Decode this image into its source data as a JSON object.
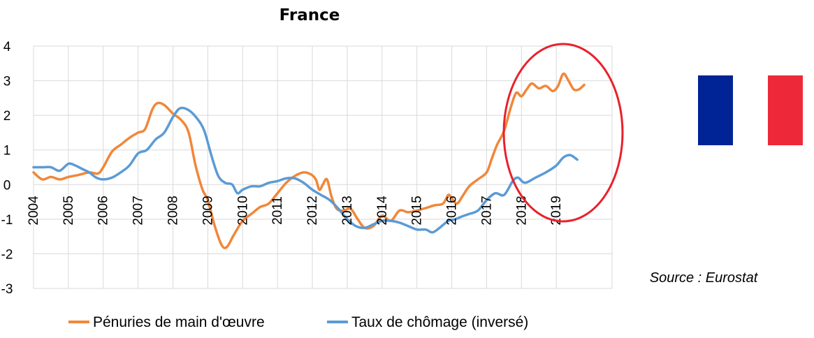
{
  "chart_data": {
    "type": "line",
    "title": "France",
    "xlabel": "",
    "ylabel": "",
    "ylim": [
      -3,
      4
    ],
    "y_ticks": [
      4,
      3,
      2,
      1,
      0,
      -1,
      -2,
      -3
    ],
    "x_ticks": [
      "2004",
      "2005",
      "2006",
      "2007",
      "2008",
      "2009",
      "2010",
      "2011",
      "2012",
      "2013",
      "2014",
      "2015",
      "2016",
      "2017",
      "2018",
      "2019"
    ],
    "xlim": [
      2004.0,
      2020.6
    ],
    "grid": "vertical and horizontal",
    "legend_position": "bottom",
    "source": "Source : Eurostat",
    "series": [
      {
        "name": "Pénuries de main d'œuvre",
        "color": "#F0873A",
        "points": [
          [
            2004.0,
            0.35
          ],
          [
            2004.25,
            0.15
          ],
          [
            2004.5,
            0.22
          ],
          [
            2004.75,
            0.15
          ],
          [
            2005.0,
            0.22
          ],
          [
            2005.3,
            0.28
          ],
          [
            2005.6,
            0.35
          ],
          [
            2005.85,
            0.32
          ],
          [
            2006.0,
            0.5
          ],
          [
            2006.25,
            0.95
          ],
          [
            2006.5,
            1.15
          ],
          [
            2006.75,
            1.35
          ],
          [
            2007.0,
            1.5
          ],
          [
            2007.2,
            1.6
          ],
          [
            2007.4,
            2.15
          ],
          [
            2007.55,
            2.35
          ],
          [
            2007.75,
            2.3
          ],
          [
            2008.0,
            2.05
          ],
          [
            2008.25,
            1.85
          ],
          [
            2008.45,
            1.5
          ],
          [
            2008.65,
            0.55
          ],
          [
            2008.85,
            -0.15
          ],
          [
            2009.0,
            -0.45
          ],
          [
            2009.2,
            -1.2
          ],
          [
            2009.4,
            -1.75
          ],
          [
            2009.55,
            -1.8
          ],
          [
            2009.75,
            -1.45
          ],
          [
            2010.0,
            -1.05
          ],
          [
            2010.25,
            -0.85
          ],
          [
            2010.5,
            -0.65
          ],
          [
            2010.75,
            -0.55
          ],
          [
            2011.0,
            -0.25
          ],
          [
            2011.25,
            0.05
          ],
          [
            2011.5,
            0.25
          ],
          [
            2011.75,
            0.35
          ],
          [
            2011.95,
            0.3
          ],
          [
            2012.1,
            0.15
          ],
          [
            2012.2,
            -0.15
          ],
          [
            2012.3,
            0.0
          ],
          [
            2012.42,
            0.15
          ],
          [
            2012.55,
            -0.35
          ],
          [
            2012.7,
            -0.7
          ],
          [
            2012.9,
            -0.75
          ],
          [
            2013.1,
            -0.7
          ],
          [
            2013.3,
            -1.0
          ],
          [
            2013.5,
            -1.25
          ],
          [
            2013.75,
            -1.2
          ],
          [
            2014.0,
            -0.9
          ],
          [
            2014.25,
            -1.05
          ],
          [
            2014.5,
            -0.75
          ],
          [
            2014.75,
            -0.8
          ],
          [
            2015.0,
            -0.75
          ],
          [
            2015.25,
            -0.68
          ],
          [
            2015.5,
            -0.6
          ],
          [
            2015.75,
            -0.55
          ],
          [
            2015.9,
            -0.3
          ],
          [
            2016.0,
            -0.4
          ],
          [
            2016.15,
            -0.55
          ],
          [
            2016.3,
            -0.35
          ],
          [
            2016.5,
            -0.05
          ],
          [
            2016.75,
            0.15
          ],
          [
            2017.0,
            0.35
          ],
          [
            2017.15,
            0.75
          ],
          [
            2017.3,
            1.15
          ],
          [
            2017.5,
            1.55
          ],
          [
            2017.7,
            2.25
          ],
          [
            2017.85,
            2.65
          ],
          [
            2018.0,
            2.55
          ],
          [
            2018.15,
            2.75
          ],
          [
            2018.3,
            2.92
          ],
          [
            2018.5,
            2.78
          ],
          [
            2018.7,
            2.85
          ],
          [
            2018.9,
            2.7
          ],
          [
            2019.05,
            2.85
          ],
          [
            2019.2,
            3.2
          ],
          [
            2019.35,
            3.0
          ],
          [
            2019.5,
            2.75
          ],
          [
            2019.65,
            2.75
          ],
          [
            2019.8,
            2.88
          ]
        ]
      },
      {
        "name": "Taux de chômage (inversé)",
        "color": "#5B9BD5",
        "points": [
          [
            2004.0,
            0.5
          ],
          [
            2004.25,
            0.5
          ],
          [
            2004.5,
            0.5
          ],
          [
            2004.75,
            0.4
          ],
          [
            2005.0,
            0.6
          ],
          [
            2005.2,
            0.55
          ],
          [
            2005.4,
            0.45
          ],
          [
            2005.6,
            0.35
          ],
          [
            2005.8,
            0.2
          ],
          [
            2006.0,
            0.15
          ],
          [
            2006.25,
            0.2
          ],
          [
            2006.5,
            0.35
          ],
          [
            2006.75,
            0.55
          ],
          [
            2007.0,
            0.9
          ],
          [
            2007.25,
            1.0
          ],
          [
            2007.5,
            1.3
          ],
          [
            2007.75,
            1.5
          ],
          [
            2008.0,
            1.95
          ],
          [
            2008.2,
            2.2
          ],
          [
            2008.45,
            2.15
          ],
          [
            2008.7,
            1.9
          ],
          [
            2008.9,
            1.55
          ],
          [
            2009.1,
            0.85
          ],
          [
            2009.3,
            0.25
          ],
          [
            2009.5,
            0.05
          ],
          [
            2009.7,
            0.0
          ],
          [
            2009.85,
            -0.25
          ],
          [
            2010.0,
            -0.15
          ],
          [
            2010.25,
            -0.05
          ],
          [
            2010.5,
            -0.05
          ],
          [
            2010.75,
            0.05
          ],
          [
            2011.0,
            0.1
          ],
          [
            2011.25,
            0.18
          ],
          [
            2011.5,
            0.18
          ],
          [
            2011.75,
            0.05
          ],
          [
            2012.0,
            -0.15
          ],
          [
            2012.25,
            -0.3
          ],
          [
            2012.5,
            -0.45
          ],
          [
            2012.75,
            -0.7
          ],
          [
            2013.0,
            -1.0
          ],
          [
            2013.25,
            -1.2
          ],
          [
            2013.5,
            -1.25
          ],
          [
            2013.75,
            -1.15
          ],
          [
            2014.0,
            -1.05
          ],
          [
            2014.25,
            -1.05
          ],
          [
            2014.5,
            -1.1
          ],
          [
            2014.75,
            -1.2
          ],
          [
            2015.0,
            -1.3
          ],
          [
            2015.25,
            -1.3
          ],
          [
            2015.45,
            -1.38
          ],
          [
            2015.65,
            -1.25
          ],
          [
            2015.9,
            -1.05
          ],
          [
            2016.1,
            -1.0
          ],
          [
            2016.35,
            -0.9
          ],
          [
            2016.5,
            -0.85
          ],
          [
            2016.75,
            -0.75
          ],
          [
            2017.0,
            -0.45
          ],
          [
            2017.25,
            -0.25
          ],
          [
            2017.5,
            -0.3
          ],
          [
            2017.75,
            0.1
          ],
          [
            2017.9,
            0.2
          ],
          [
            2018.1,
            0.05
          ],
          [
            2018.4,
            0.2
          ],
          [
            2018.7,
            0.35
          ],
          [
            2019.0,
            0.55
          ],
          [
            2019.2,
            0.78
          ],
          [
            2019.4,
            0.85
          ],
          [
            2019.6,
            0.72
          ]
        ]
      }
    ],
    "annotation": "red-ellipse-highlight",
    "highlight_color": "#E8212B"
  },
  "flag": {
    "icon": "france-flag-icon",
    "colors": [
      "#002395",
      "#FFFFFF",
      "#ED2939"
    ]
  }
}
